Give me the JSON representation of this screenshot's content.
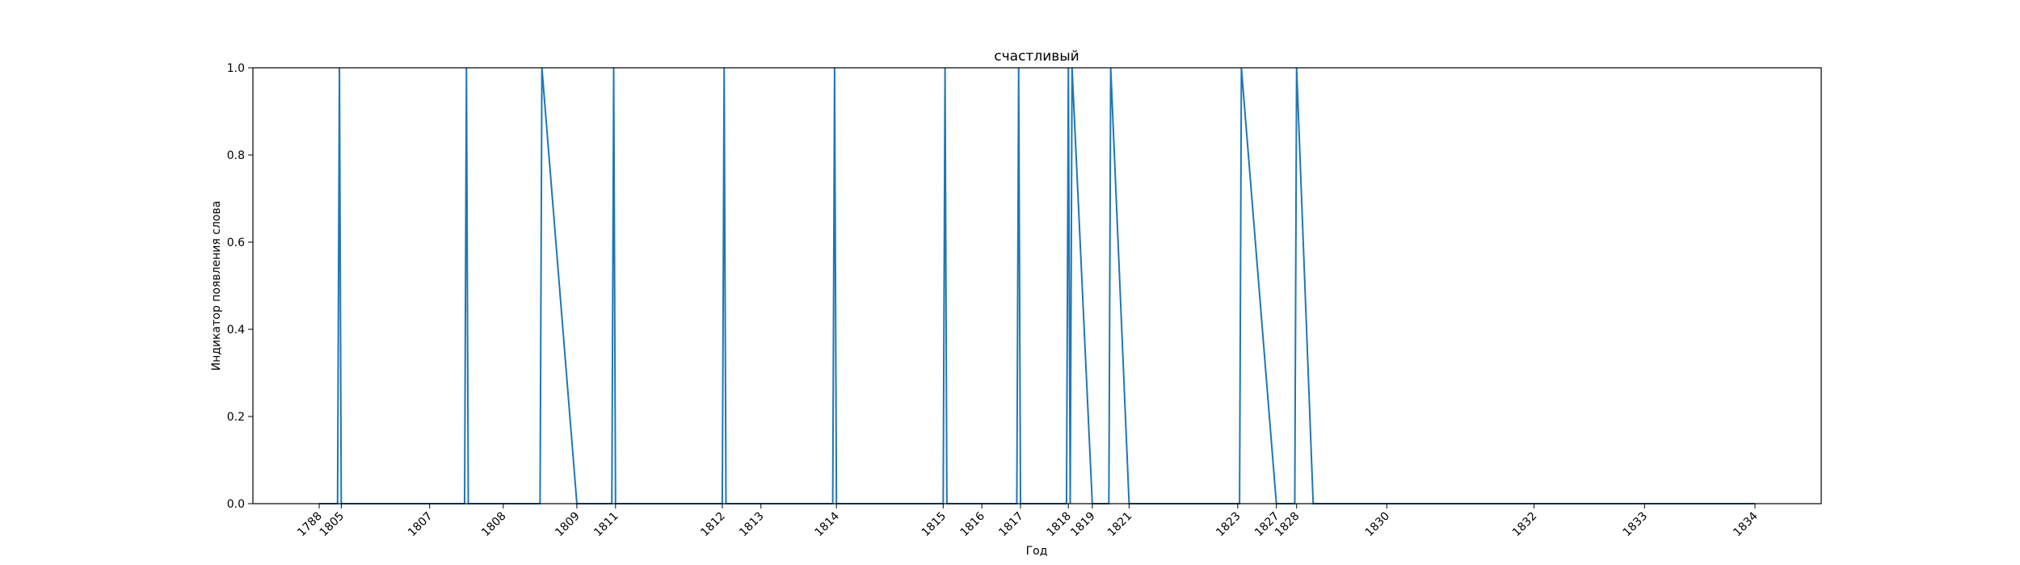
{
  "chart_data": {
    "type": "line",
    "title": "счастливый",
    "xlabel": "Год",
    "ylabel": "Индикатор появления слова",
    "ylim": [
      0,
      1
    ],
    "yticks": [
      "0.0",
      "0.2",
      "0.4",
      "0.6",
      "0.8",
      "1.0"
    ],
    "xtick_labels": [
      "1788",
      "1805",
      "1807",
      "1808",
      "1809",
      "1811",
      "1812",
      "1813",
      "1814",
      "1815",
      "1816",
      "1817",
      "1818",
      "1819",
      "1821",
      "1823",
      "1827",
      "1828",
      "1830",
      "1832",
      "1833",
      "1834"
    ],
    "series_color": "#1f77b4",
    "occurrences_label": "1.0",
    "x": [
      0,
      0.5,
      0.55,
      0.6,
      1,
      2,
      3,
      3.95,
      4.0,
      4.05,
      5,
      6,
      6.05,
      7,
      7.95,
      8.0,
      8.05,
      9,
      10,
      10.95,
      11.0,
      11.05,
      12,
      13,
      13.95,
      14.0,
      14.05,
      15,
      16,
      16.95,
      17.0,
      17.05,
      18,
      18.95,
      19.0,
      19.05,
      20,
      20.3,
      20.35,
      20.4,
      20.45,
      21,
      21.4,
      21.45,
      21.5,
      22,
      23,
      24,
      24.95,
      25.0,
      25.05,
      26,
      26.45,
      26.5,
      26.55,
      27,
      28,
      29,
      30,
      31,
      32,
      33,
      34,
      35,
      36,
      37,
      38,
      39
    ],
    "y": [
      0,
      0,
      1,
      0,
      0,
      0,
      0,
      0,
      1,
      0,
      0,
      0,
      1,
      0,
      0,
      1,
      0,
      0,
      0,
      0,
      1,
      0,
      0,
      0,
      0,
      1,
      0,
      0,
      0,
      0,
      1,
      0,
      0,
      0,
      1,
      0,
      0,
      0,
      1,
      0,
      1,
      0,
      0,
      0,
      1,
      0,
      0,
      0,
      0,
      0,
      1,
      0,
      0,
      0,
      1,
      0,
      0,
      0,
      0,
      0,
      0,
      0,
      0,
      0,
      0,
      0,
      0,
      0
    ]
  }
}
